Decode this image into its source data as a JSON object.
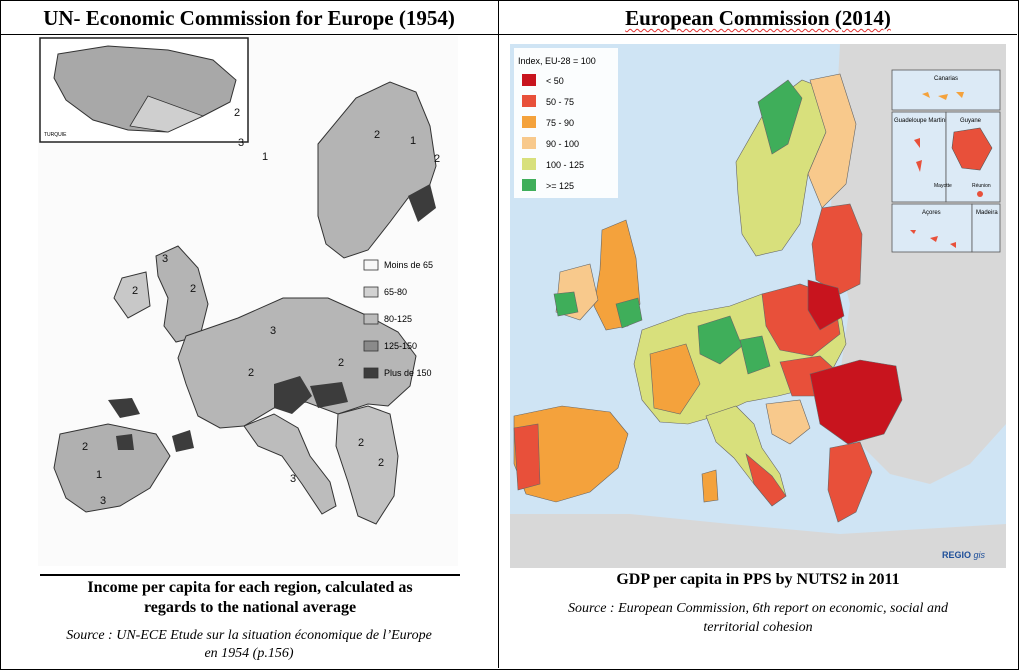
{
  "left": {
    "title": "UN- Economic Commission for Europe (1954)",
    "caption_line1": "Income per capita for each region, calculated as",
    "caption_line2": "regards to the national average",
    "source_line1": "Source : UN-ECE Etude sur la situation économique de l’Europe",
    "source_line2": "en 1954 (p.156)",
    "inset_label": "TURQUIE",
    "legend": [
      "Moins de 65",
      "65-80",
      "80-125",
      "125-150",
      "Plus de 150"
    ],
    "legend_colors": [
      "#f7f7f7",
      "#d2d2d2",
      "#bcbcbc",
      "#8a8a8a",
      "#3c3c3c"
    ]
  },
  "right": {
    "title": "European Commission (2014)",
    "caption": "GDP per capita in PPS by NUTS2 in 2011",
    "source_line1": "Source : European Commission, 6th report on economic, social and",
    "source_line2": "territorial cohesion",
    "legend_title": "Index, EU-28 = 100",
    "legend": [
      "< 50",
      "50 - 75",
      "75 - 90",
      "90 - 100",
      "100 - 125",
      ">= 125"
    ],
    "legend_colors": [
      "#c8141e",
      "#e8503a",
      "#f4a23c",
      "#f8c98c",
      "#d8e07c",
      "#3fae5a"
    ],
    "insets": [
      "Canarias",
      "Guadeloupe Martinique",
      "Guyane",
      "Mayotte",
      "Réunion",
      "Açores",
      "Madeira"
    ],
    "logo": "REGIO",
    "logo_suffix": "gis"
  }
}
